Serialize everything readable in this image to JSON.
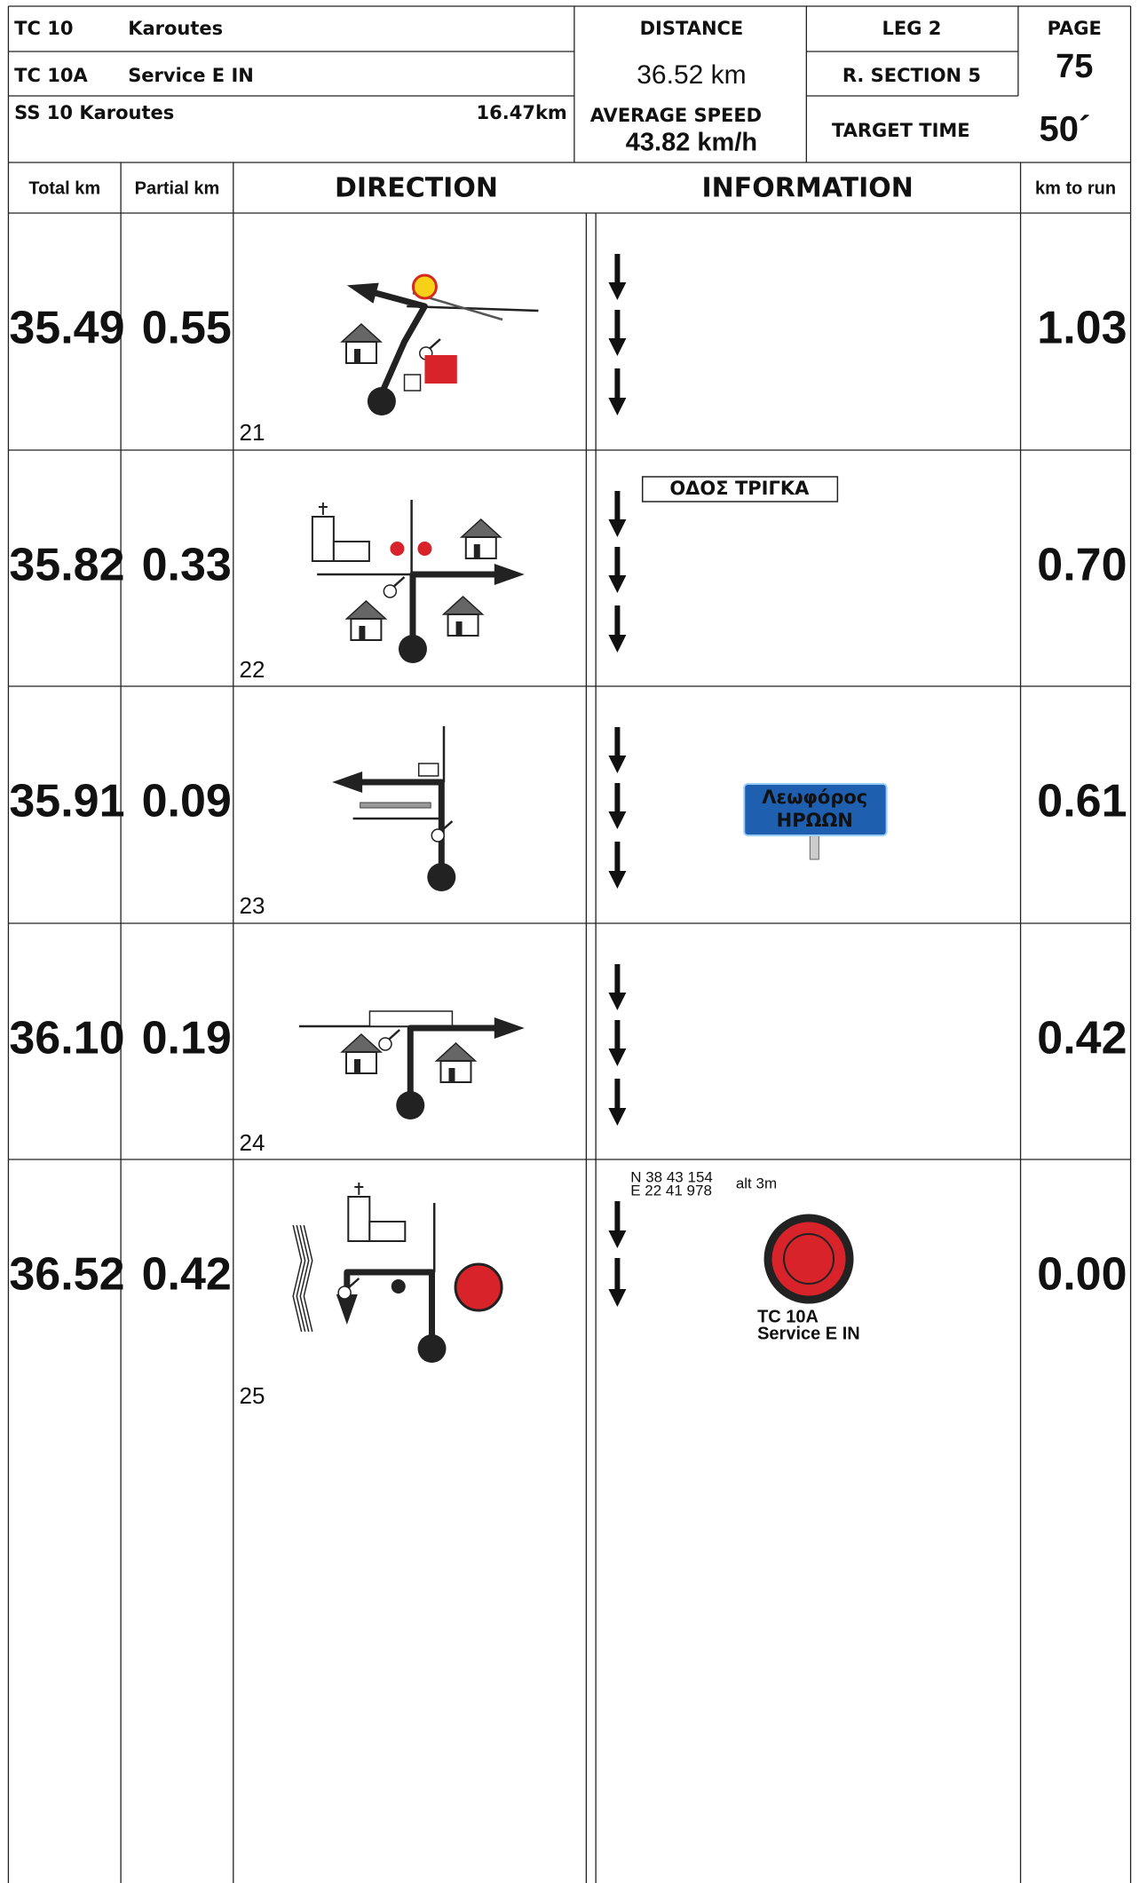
{
  "header": {
    "tc": "TC 10",
    "tc_name": "Karoutes",
    "tc_a": "TC 10A",
    "tc_a_name": "Service E IN",
    "ss": "SS 10 Karoutes",
    "ss_km": "16.47km",
    "distance_label": "DISTANCE",
    "distance": "36.52 km",
    "leg": "LEG  2",
    "r_section": "R. SECTION  5",
    "page_label": "PAGE",
    "page": "75",
    "avg_speed_label": "AVERAGE SPEED",
    "avg_speed": "43.82 km/h",
    "target_time_label": "TARGET TIME",
    "target_time": "50´"
  },
  "columns": [
    "Total km",
    "Partial km",
    "DIRECTION",
    "INFORMATION",
    "km to run"
  ],
  "rows": [
    {
      "total": "35.49",
      "partial": "0.55",
      "number": "21",
      "to_run": "1.03"
    },
    {
      "total": "35.82",
      "partial": "0.33",
      "number": "22",
      "to_run": "0.70",
      "sign": "ΟΔΟΣ ΤΡΙΓΚΑ"
    },
    {
      "total": "35.91",
      "partial": "0.09",
      "number": "23",
      "to_run": "0.61",
      "sign": [
        "Λεωφόρος",
        "ΗΡΩΩΝ"
      ]
    },
    {
      "total": "36.10",
      "partial": "0.19",
      "number": "24",
      "to_run": "0.42"
    },
    {
      "total": "36.52",
      "partial": "0.42",
      "number": "25",
      "to_run": "0.00",
      "coords": [
        "N 38 43 154",
        "E 22 41 978"
      ],
      "alt": "alt 3m",
      "label": [
        "TC 10A",
        "Service E IN"
      ]
    }
  ]
}
